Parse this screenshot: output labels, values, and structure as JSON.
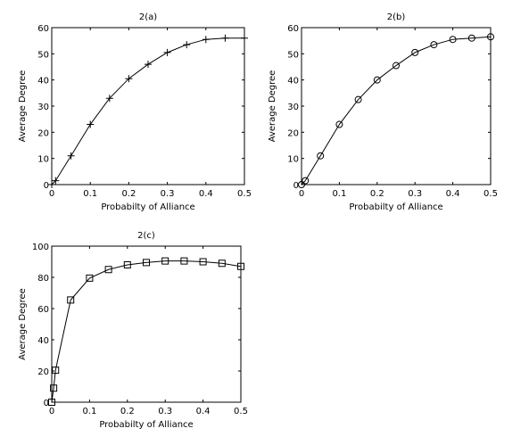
{
  "chart_data": [
    {
      "type": "line",
      "title": "2(a)",
      "xlabel": "Probabilty of Alliance",
      "ylabel": "Average Degree",
      "xlim": [
        0,
        0.5
      ],
      "ylim": [
        0,
        60
      ],
      "xticks": [
        0,
        0.1,
        0.2,
        0.3,
        0.4,
        0.5
      ],
      "yticks": [
        0,
        10,
        20,
        30,
        40,
        50,
        60
      ],
      "marker": "plus",
      "grid": false,
      "series": [
        {
          "x": [
            0,
            0.01,
            0.05,
            0.1,
            0.15,
            0.2,
            0.25,
            0.3,
            0.35,
            0.4,
            0.45,
            0.5
          ],
          "y": [
            0,
            1.5,
            11,
            23,
            33,
            40.5,
            46,
            50.5,
            53.5,
            55.5,
            56,
            56
          ]
        }
      ]
    },
    {
      "type": "line",
      "title": "2(b)",
      "xlabel": "Probabilty of Alliance",
      "ylabel": "Average Degree",
      "xlim": [
        0,
        0.5
      ],
      "ylim": [
        0,
        60
      ],
      "xticks": [
        0,
        0.1,
        0.2,
        0.3,
        0.4,
        0.5
      ],
      "yticks": [
        0,
        10,
        20,
        30,
        40,
        50,
        60
      ],
      "marker": "circle",
      "grid": false,
      "series": [
        {
          "x": [
            0,
            0.01,
            0.05,
            0.1,
            0.15,
            0.2,
            0.25,
            0.3,
            0.35,
            0.4,
            0.45,
            0.5
          ],
          "y": [
            0,
            1.5,
            11,
            23,
            32.5,
            40,
            45.5,
            50.5,
            53.5,
            55.5,
            56,
            56.5
          ]
        }
      ]
    },
    {
      "type": "line",
      "title": "2(c)",
      "xlabel": "Probabilty of Alliance",
      "ylabel": "Average Degree",
      "xlim": [
        0,
        0.5
      ],
      "ylim": [
        0,
        100
      ],
      "xticks": [
        0,
        0.1,
        0.2,
        0.3,
        0.4,
        0.5
      ],
      "yticks": [
        0,
        20,
        40,
        60,
        80,
        100
      ],
      "marker": "square",
      "grid": false,
      "series": [
        {
          "x": [
            0,
            0.005,
            0.01,
            0.05,
            0.1,
            0.15,
            0.2,
            0.25,
            0.3,
            0.35,
            0.4,
            0.45,
            0.5
          ],
          "y": [
            0,
            9,
            20.5,
            65.5,
            79.5,
            85,
            88,
            89.5,
            90.5,
            90.5,
            90,
            89,
            87
          ]
        }
      ]
    }
  ]
}
